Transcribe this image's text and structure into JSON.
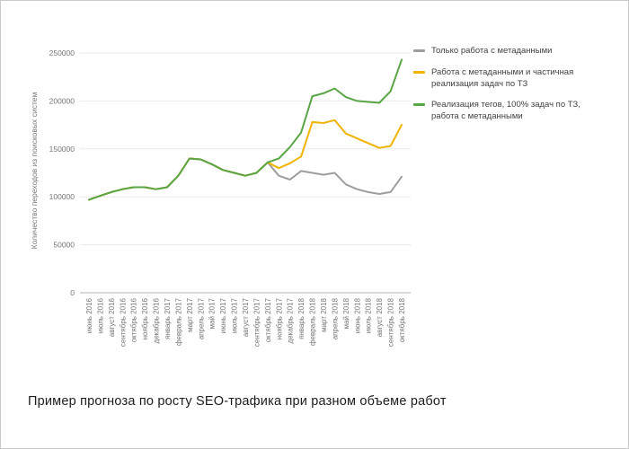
{
  "page": {
    "caption": "Пример прогноза по росту SEO-трафика при разном объеме работ"
  },
  "chart_data": {
    "type": "line",
    "title": "",
    "xlabel": "",
    "ylabel": "Количество переходов из поисковых систем",
    "ylim": [
      0,
      250000
    ],
    "yticks": [
      0,
      50000,
      100000,
      150000,
      200000,
      250000
    ],
    "grid": true,
    "legend_position": "right",
    "axis_text_color": "#757575",
    "gridline_color": "#e9e9e9",
    "baseline_color": "#b3b3b3",
    "categories": [
      "июнь 2016",
      "июль 2016",
      "август 2016",
      "сентябрь 2016",
      "октябрь 2016",
      "ноябрь 2016",
      "декабрь 2016",
      "январь 2017",
      "февраль 2017",
      "март 2017",
      "апрель 2017",
      "май 2017",
      "июнь 2017",
      "июль 2017",
      "август 2017",
      "сентябрь 2017",
      "октябрь 2017",
      "ноябрь 2017",
      "декабрь 2017",
      "январь 2018",
      "февраль 2018",
      "март 2018",
      "апрель 2018",
      "май 2018",
      "июнь 2018",
      "июль 2018",
      "август 2018",
      "сентябрь 2018",
      "октябрь 2018"
    ],
    "series": [
      {
        "name": "Только работа с метаданными",
        "color": "#9e9e9e",
        "values": [
          97000,
          101000,
          105000,
          108000,
          110000,
          110000,
          108000,
          110000,
          122000,
          140000,
          139000,
          134000,
          128000,
          125000,
          122000,
          125000,
          136000,
          122000,
          118000,
          127000,
          125000,
          123000,
          125000,
          113000,
          108000,
          105000,
          103000,
          105000,
          121000
        ]
      },
      {
        "name": "Работа с метаданными и частичная реализация задач по ТЗ",
        "color": "#f0b400",
        "values": [
          97000,
          101000,
          105000,
          108000,
          110000,
          110000,
          108000,
          110000,
          122000,
          140000,
          139000,
          134000,
          128000,
          125000,
          122000,
          125000,
          136000,
          130000,
          135000,
          142000,
          178000,
          177000,
          180000,
          166000,
          161000,
          156000,
          151000,
          153000,
          175000
        ]
      },
      {
        "name": "Реализация тегов, 100% задач по ТЗ, работа с метаданными",
        "color": "#5aa546",
        "values": [
          97000,
          101000,
          105000,
          108000,
          110000,
          110000,
          108000,
          110000,
          122000,
          140000,
          139000,
          134000,
          128000,
          125000,
          122000,
          125000,
          136000,
          140000,
          152000,
          167000,
          205000,
          208000,
          213000,
          204000,
          200000,
          199000,
          198000,
          210000,
          243000
        ]
      }
    ]
  }
}
